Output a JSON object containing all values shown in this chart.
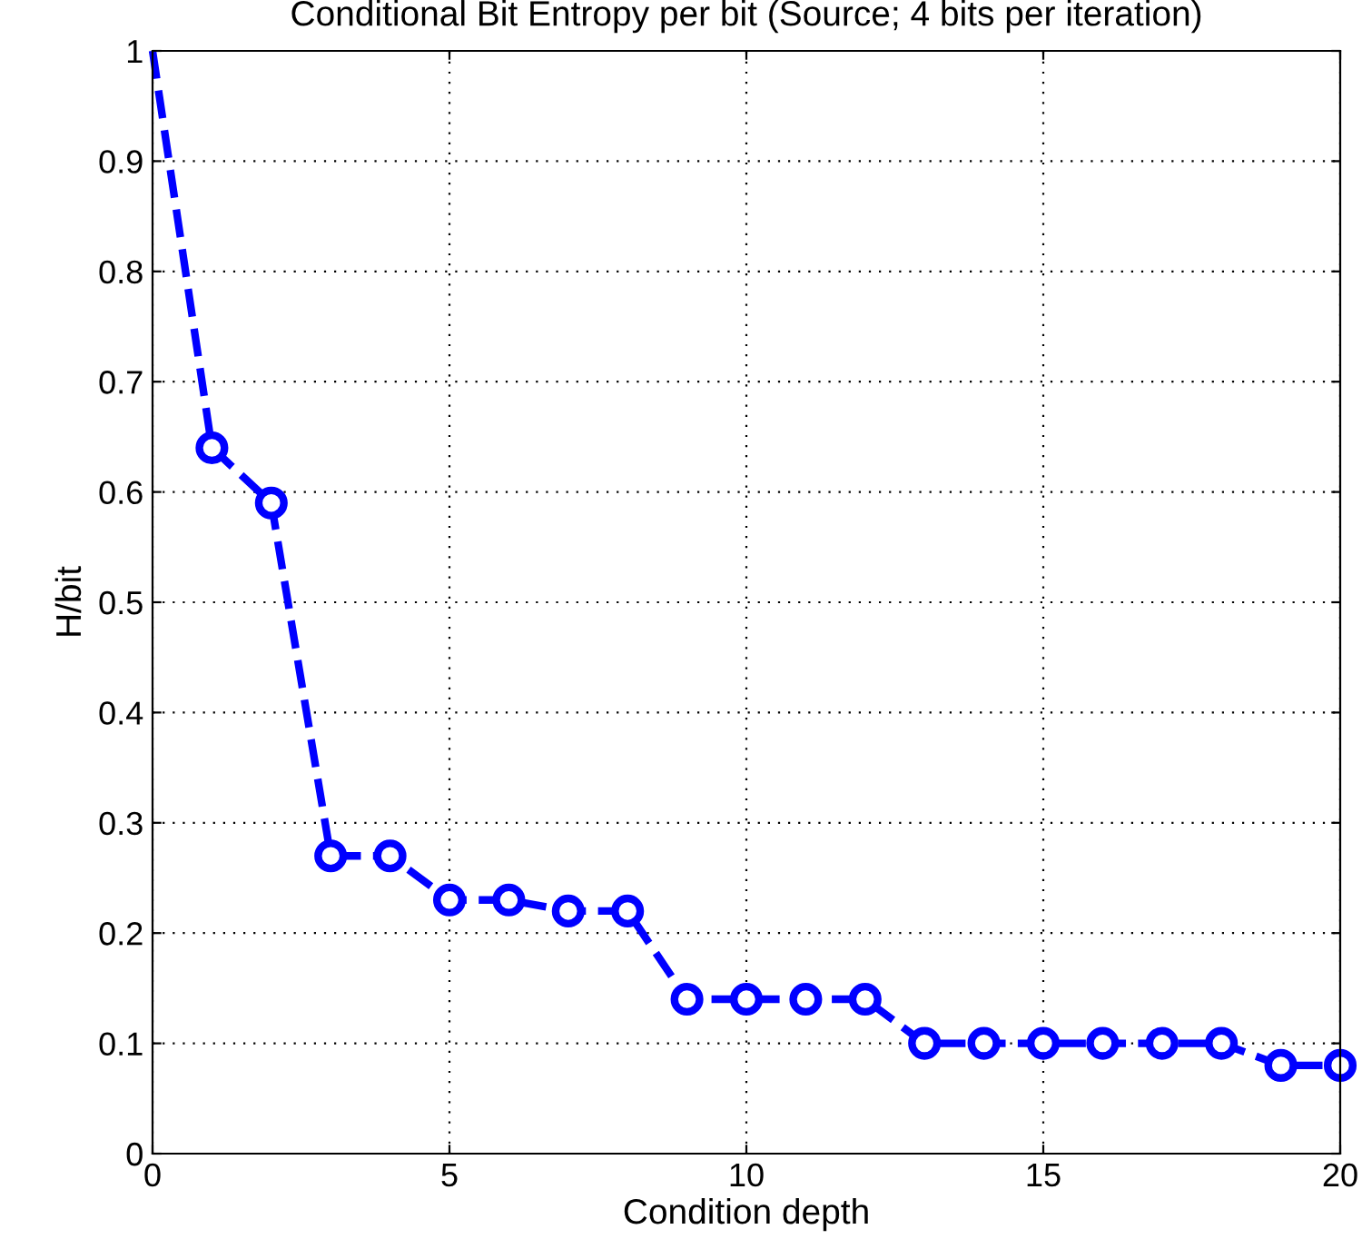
{
  "chart_data": {
    "type": "line",
    "title": "Conditional Bit Entropy per bit (Source; 4 bits per iteration)",
    "xlabel": "Condition depth",
    "ylabel": "H/bit",
    "x": [
      0,
      1,
      2,
      3,
      4,
      5,
      6,
      7,
      8,
      9,
      10,
      11,
      12,
      13,
      14,
      15,
      16,
      17,
      18,
      19,
      20
    ],
    "series": [
      {
        "color": "#0000ff",
        "values": [
          1,
          0.64,
          0.59,
          0.27,
          0.27,
          0.23,
          0.23,
          0.22,
          0.22,
          0.14,
          0.14,
          0.14,
          0.14,
          0.1,
          0.1,
          0.1,
          0.1,
          0.1,
          0.1,
          0.08,
          0.08
        ]
      }
    ],
    "xlim": [
      0,
      20
    ],
    "ylim": [
      0,
      1
    ],
    "xticks": [
      0,
      5,
      10,
      15,
      20
    ],
    "yticks": [
      0,
      {
        "value": 0.1,
        "label": "0.1"
      },
      {
        "value": 0.2,
        "label": "0.2"
      },
      {
        "value": 0.3,
        "label": "0.3"
      },
      {
        "value": 0.4,
        "label": "0.4"
      },
      {
        "value": 0.5,
        "label": "0.5"
      },
      {
        "value": 0.6,
        "label": "0.6"
      },
      {
        "value": 0.7,
        "label": "0.7"
      },
      {
        "value": 0.8,
        "label": "0.8"
      },
      {
        "value": 0.9,
        "label": "0.9"
      },
      1
    ],
    "grid": true,
    "marker": "circle",
    "line_style": "dashed"
  }
}
